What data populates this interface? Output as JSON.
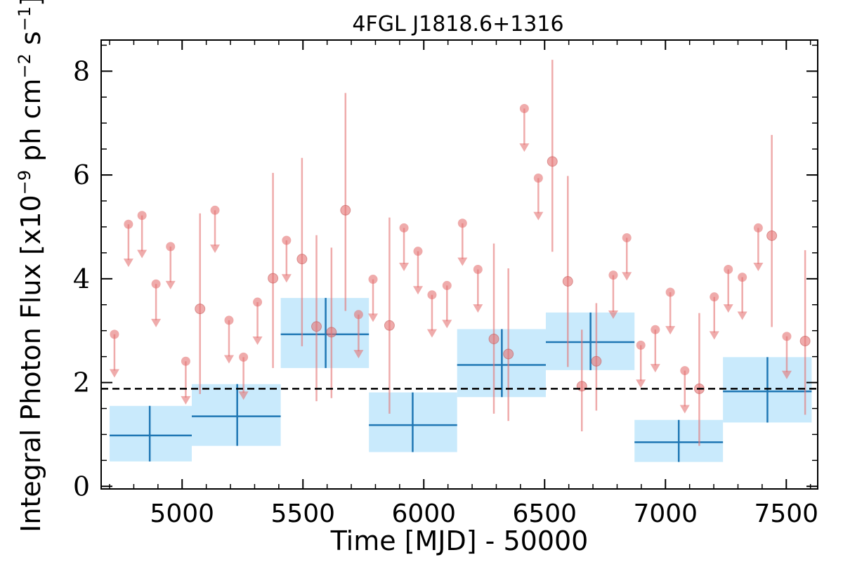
{
  "chart_data": {
    "type": "scatter",
    "title": "4FGL J1818.6+1316",
    "xlabel": "Time [MJD] - 50000",
    "ylabel": "Integral Photon Flux [x10",
    "ylabel_exp1": "−9",
    "ylabel_mid": " ph cm",
    "ylabel_exp2": "−2",
    "ylabel_s": " s",
    "ylabel_exp3": "−1",
    "ylabel_end": "]",
    "xlim": [
      4665,
      7630
    ],
    "ylim": [
      -0.05,
      8.6
    ],
    "xticks": [
      "5000",
      "5500",
      "6000",
      "6500",
      "7000",
      "7500"
    ],
    "xtick_values": [
      5000,
      5500,
      6000,
      6500,
      7000,
      7500
    ],
    "yticks": [
      "0",
      "2",
      "4",
      "6",
      "8"
    ],
    "ytick_values": [
      0,
      2,
      4,
      6,
      8
    ],
    "baseline": 1.88,
    "grid": false,
    "colors": {
      "short_points": "#e57373",
      "long_bin_line": "#1f77b4",
      "long_bin_box": "#bfe6fb",
      "baseline": "#000000"
    },
    "long_bins": [
      {
        "x": 4866,
        "x_lo": 4700,
        "x_hi": 5040,
        "y": 0.98,
        "y_lo": 0.48,
        "y_hi": 1.55
      },
      {
        "x": 5228,
        "x_lo": 5040,
        "x_hi": 5408,
        "y": 1.35,
        "y_lo": 0.78,
        "y_hi": 1.97
      },
      {
        "x": 5594,
        "x_lo": 5408,
        "x_hi": 5773,
        "y": 2.93,
        "y_lo": 2.28,
        "y_hi": 3.63
      },
      {
        "x": 5954,
        "x_lo": 5773,
        "x_hi": 6138,
        "y": 1.18,
        "y_lo": 0.66,
        "y_hi": 1.81
      },
      {
        "x": 6323,
        "x_lo": 6138,
        "x_hi": 6505,
        "y": 2.34,
        "y_lo": 1.72,
        "y_hi": 3.03
      },
      {
        "x": 6690,
        "x_lo": 6505,
        "x_hi": 6872,
        "y": 2.78,
        "y_lo": 2.24,
        "y_hi": 3.35
      },
      {
        "x": 7055,
        "x_lo": 6872,
        "x_hi": 7238,
        "y": 0.85,
        "y_lo": 0.47,
        "y_hi": 1.28
      },
      {
        "x": 7422,
        "x_lo": 7238,
        "x_hi": 7605,
        "y": 1.83,
        "y_lo": 1.23,
        "y_hi": 2.49
      }
    ],
    "upper_limits": [
      {
        "x": 4720,
        "y": 2.93,
        "to": 2.15
      },
      {
        "x": 4778,
        "y": 5.05,
        "to": 4.28
      },
      {
        "x": 4834,
        "y": 5.22,
        "to": 4.45
      },
      {
        "x": 4892,
        "y": 3.9,
        "to": 3.12
      },
      {
        "x": 4952,
        "y": 4.62,
        "to": 3.85
      },
      {
        "x": 5015,
        "y": 2.41,
        "to": 1.63
      },
      {
        "x": 5136,
        "y": 5.32,
        "to": 4.55
      },
      {
        "x": 5194,
        "y": 3.2,
        "to": 2.42
      },
      {
        "x": 5254,
        "y": 2.49,
        "to": 1.72
      },
      {
        "x": 5312,
        "y": 3.55,
        "to": 2.78
      },
      {
        "x": 5432,
        "y": 4.74,
        "to": 3.98
      },
      {
        "x": 5730,
        "y": 3.31,
        "to": 2.52
      },
      {
        "x": 5790,
        "y": 3.99,
        "to": 3.22
      },
      {
        "x": 5918,
        "y": 4.98,
        "to": 4.2
      },
      {
        "x": 5976,
        "y": 4.53,
        "to": 3.75
      },
      {
        "x": 6034,
        "y": 3.69,
        "to": 2.92
      },
      {
        "x": 6096,
        "y": 3.87,
        "to": 3.1
      },
      {
        "x": 6160,
        "y": 5.07,
        "to": 4.3
      },
      {
        "x": 6224,
        "y": 4.18,
        "to": 3.4
      },
      {
        "x": 6416,
        "y": 7.28,
        "to": 6.5
      },
      {
        "x": 6474,
        "y": 5.94,
        "to": 5.18
      },
      {
        "x": 6784,
        "y": 4.07,
        "to": 3.28
      },
      {
        "x": 6840,
        "y": 4.79,
        "to": 4.02
      },
      {
        "x": 6898,
        "y": 2.72,
        "to": 1.95
      },
      {
        "x": 6958,
        "y": 3.02,
        "to": 2.25
      },
      {
        "x": 7020,
        "y": 3.74,
        "to": 2.98
      },
      {
        "x": 7080,
        "y": 2.23,
        "to": 1.46
      },
      {
        "x": 7202,
        "y": 3.65,
        "to": 2.88
      },
      {
        "x": 7260,
        "y": 4.18,
        "to": 3.4
      },
      {
        "x": 7318,
        "y": 4.03,
        "to": 3.26
      },
      {
        "x": 7384,
        "y": 4.98,
        "to": 4.2
      },
      {
        "x": 7502,
        "y": 2.89,
        "to": 2.12
      }
    ],
    "detections": [
      {
        "x": 5074,
        "y": 3.42,
        "y_lo": 1.78,
        "y_hi": 5.26
      },
      {
        "x": 5376,
        "y": 4.01,
        "y_lo": 2.28,
        "y_hi": 6.04
      },
      {
        "x": 5496,
        "y": 4.38,
        "y_lo": 2.7,
        "y_hi": 6.33
      },
      {
        "x": 5556,
        "y": 3.08,
        "y_lo": 1.64,
        "y_hi": 4.84
      },
      {
        "x": 5618,
        "y": 2.97,
        "y_lo": 1.7,
        "y_hi": 4.6
      },
      {
        "x": 5676,
        "y": 5.32,
        "y_lo": 3.38,
        "y_hi": 7.58
      },
      {
        "x": 5858,
        "y": 3.1,
        "y_lo": 1.4,
        "y_hi": 5.18
      },
      {
        "x": 6290,
        "y": 2.84,
        "y_lo": 1.4,
        "y_hi": 4.68
      },
      {
        "x": 6350,
        "y": 2.55,
        "y_lo": 1.26,
        "y_hi": 4.2
      },
      {
        "x": 6532,
        "y": 6.26,
        "y_lo": 4.52,
        "y_hi": 8.22
      },
      {
        "x": 6596,
        "y": 3.95,
        "y_lo": 2.3,
        "y_hi": 5.98
      },
      {
        "x": 6654,
        "y": 1.93,
        "y_lo": 1.06,
        "y_hi": 3.02
      },
      {
        "x": 6714,
        "y": 2.41,
        "y_lo": 1.46,
        "y_hi": 3.53
      },
      {
        "x": 7140,
        "y": 1.88,
        "y_lo": 0.78,
        "y_hi": 3.34
      },
      {
        "x": 7440,
        "y": 4.83,
        "y_lo": 3.07,
        "y_hi": 6.77
      },
      {
        "x": 7578,
        "y": 2.8,
        "y_lo": 1.38,
        "y_hi": 4.55
      }
    ]
  }
}
